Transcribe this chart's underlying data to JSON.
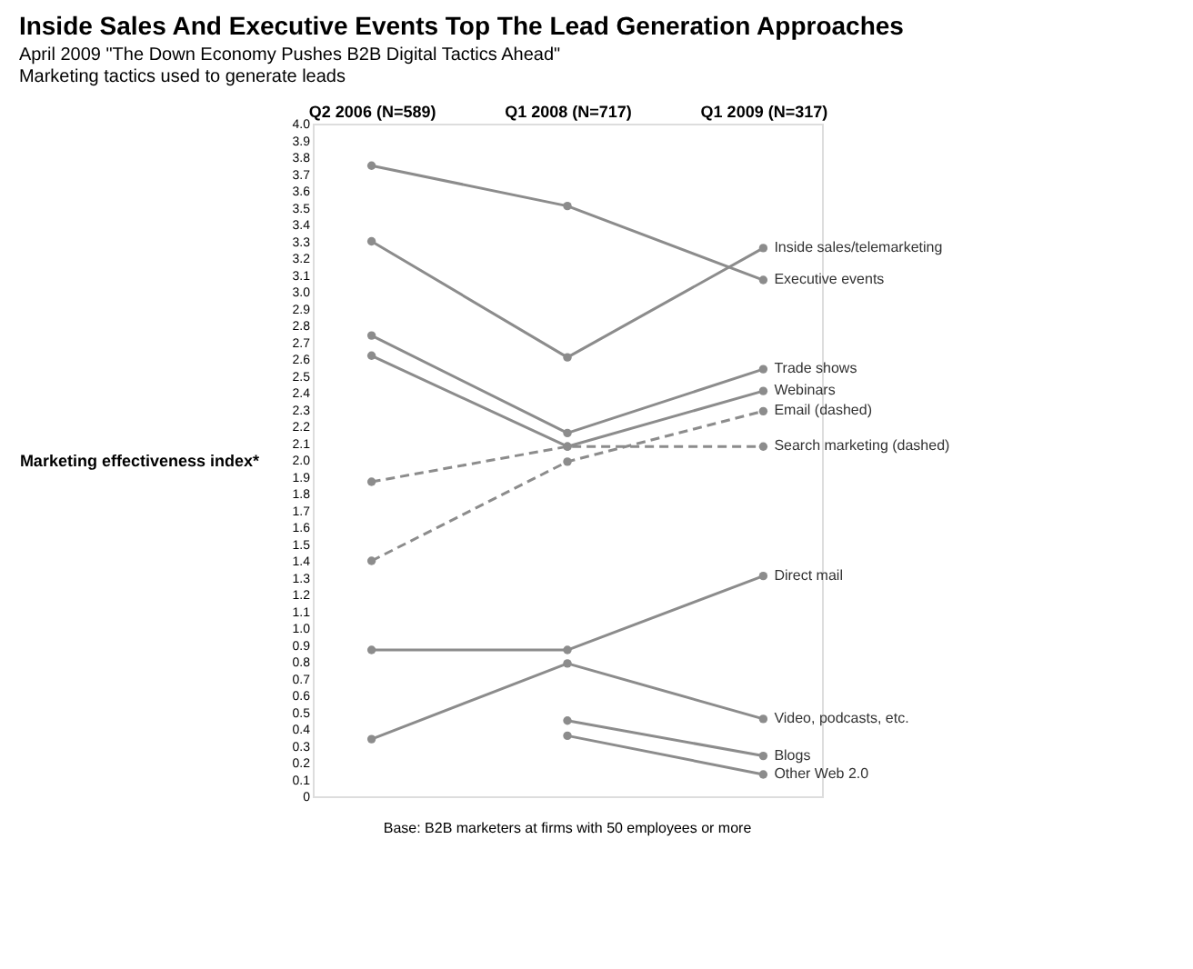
{
  "chart_data": {
    "type": "line",
    "title": "Inside Sales And Executive Events Top The Lead Generation Approaches",
    "subtitle": [
      "April 2009 \"The Down Economy Pushes B2B Digital Tactics Ahead\"",
      "Marketing tactics used to generate leads"
    ],
    "ylabel": "Marketing effectiveness index*",
    "categories": [
      "Q2 2006 (N=589)",
      "Q1 2008 (N=717)",
      "Q1 2009 (N=317)"
    ],
    "series": [
      {
        "name": "Inside sales/telemarketing",
        "color": "#8c8c8c",
        "values": [
          3.3,
          2.61,
          3.26
        ]
      },
      {
        "name": "Executive events",
        "color": "#8c8c8c",
        "values": [
          3.75,
          3.51,
          3.07
        ]
      },
      {
        "name": "Trade shows",
        "color": "#8c8c8c",
        "values": [
          2.74,
          2.16,
          2.54
        ]
      },
      {
        "name": "Webinars",
        "color": "#8c8c8c",
        "values": [
          2.62,
          2.08,
          2.41
        ]
      },
      {
        "name": "Email (dashed)",
        "color": "#8c8c8c",
        "line_style": "dashed",
        "values": [
          1.4,
          1.99,
          2.29
        ]
      },
      {
        "name": "Search marketing (dashed)",
        "color": "#8c8c8c",
        "line_style": "dashed",
        "values": [
          1.87,
          2.08,
          2.08
        ]
      },
      {
        "name": "Direct mail",
        "color": "#8c8c8c",
        "values": [
          0.87,
          0.87,
          1.31
        ]
      },
      {
        "name": "Video, podcasts, etc.",
        "color": "#8c8c8c",
        "values": [
          0.34,
          0.79,
          0.46
        ]
      },
      {
        "name": "Blogs",
        "color": "#8c8c8c",
        "values": [
          null,
          0.45,
          0.24
        ]
      },
      {
        "name": "Other Web 2.0",
        "color": "#8c8c8c",
        "values": [
          null,
          0.36,
          0.13
        ]
      }
    ],
    "ylim": [
      0,
      4
    ],
    "yticks": [
      0,
      0.1,
      0.2,
      0.3,
      0.4,
      0.5,
      0.6,
      0.7,
      0.8,
      0.9,
      {
        "value": 1,
        "label": "1.0"
      },
      1.1,
      1.2,
      1.3,
      1.4,
      1.5,
      1.6,
      1.7,
      1.8,
      1.9,
      {
        "value": 2,
        "label": "2.0"
      },
      2.1,
      2.2,
      2.3,
      2.4,
      2.5,
      2.6,
      2.7,
      2.8,
      2.9,
      {
        "value": 3,
        "label": "3.0"
      },
      3.1,
      3.2,
      3.3,
      3.4,
      3.5,
      3.6,
      3.7,
      3.8,
      3.9,
      {
        "value": 4,
        "label": "4.0"
      }
    ],
    "marker": "circle",
    "line_style": "solid",
    "grid": false,
    "annotations": [
      "Base: B2B marketers at firms with 50 employees or more"
    ]
  }
}
